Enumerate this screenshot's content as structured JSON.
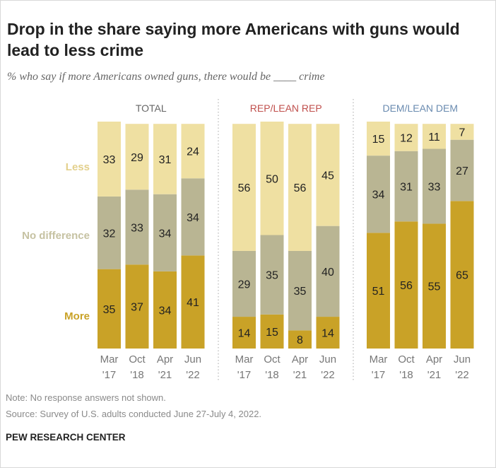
{
  "title": "Drop in the share saying more Americans with guns would lead to less crime",
  "subtitle": "% who say if more Americans owned guns, there would be ____ crime",
  "note": "Note: No response answers not shown.",
  "source": "Source: Survey of U.S. adults conducted June 27-July 4, 2022.",
  "brand": "PEW RESEARCH CENTER",
  "colors": {
    "more": "#c9a227",
    "no_difference": "#b9b593",
    "less": "#efe0a2",
    "rep": "#c0504d",
    "dem": "#6a8bb0",
    "total": "#666666"
  },
  "chart_data": {
    "type": "bar",
    "stacked": true,
    "categories": [
      [
        "Mar",
        "'17"
      ],
      [
        "Oct",
        "'18"
      ],
      [
        "Apr",
        "'21"
      ],
      [
        "Jun",
        "'22"
      ]
    ],
    "row_labels": {
      "less": "Less",
      "no_difference": "No difference",
      "more": "More"
    },
    "panels": [
      {
        "label": "TOTAL",
        "color_key": "total",
        "series": [
          {
            "name": "More",
            "values": [
              35,
              37,
              34,
              41
            ]
          },
          {
            "name": "No difference",
            "values": [
              32,
              33,
              34,
              34
            ]
          },
          {
            "name": "Less",
            "values": [
              33,
              29,
              31,
              24
            ]
          }
        ]
      },
      {
        "label": "REP/LEAN REP",
        "color_key": "rep",
        "series": [
          {
            "name": "More",
            "values": [
              14,
              15,
              8,
              14
            ]
          },
          {
            "name": "No difference",
            "values": [
              29,
              35,
              35,
              40
            ]
          },
          {
            "name": "Less",
            "values": [
              56,
              50,
              56,
              45
            ]
          }
        ]
      },
      {
        "label": "DEM/LEAN DEM",
        "color_key": "dem",
        "series": [
          {
            "name": "More",
            "values": [
              51,
              56,
              55,
              65
            ]
          },
          {
            "name": "No difference",
            "values": [
              34,
              31,
              33,
              27
            ]
          },
          {
            "name": "Less",
            "values": [
              15,
              12,
              11,
              7
            ]
          }
        ]
      }
    ]
  }
}
